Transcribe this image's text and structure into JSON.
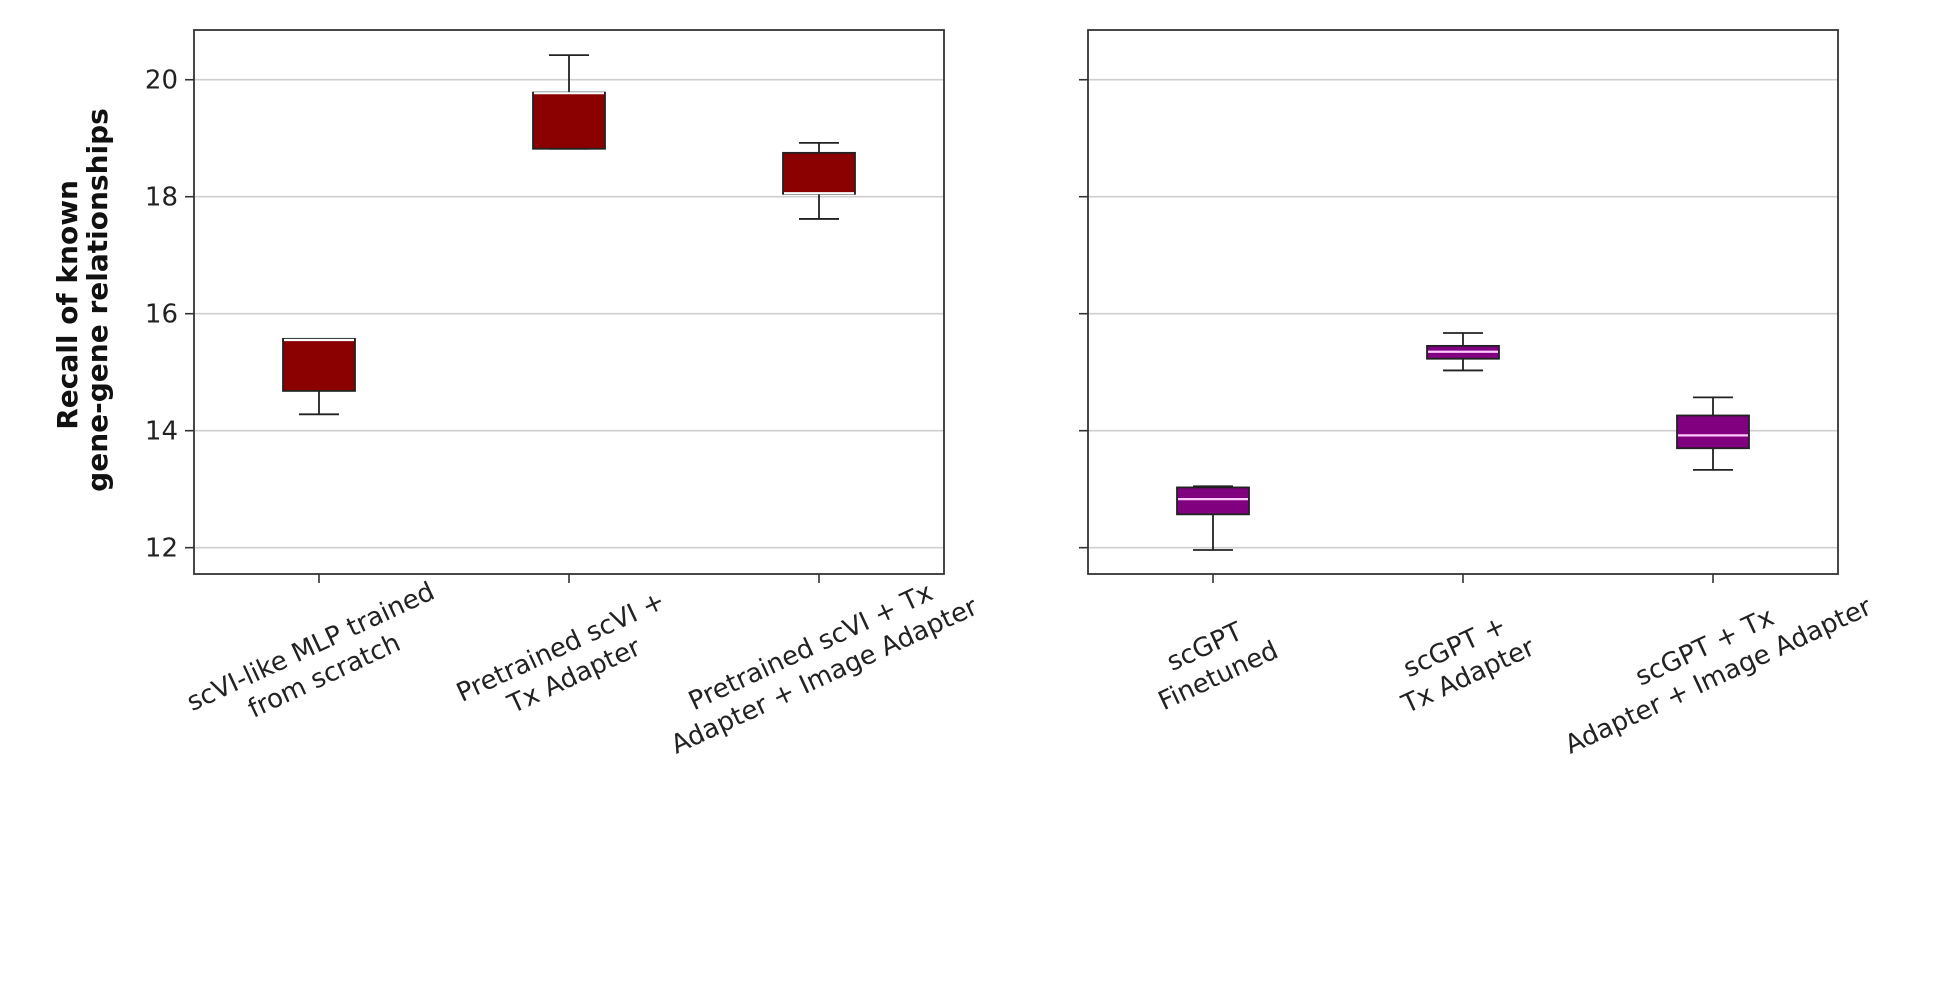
{
  "chart_data": [
    {
      "type": "box",
      "panel": "left",
      "ylabel": [
        "Recall of known",
        "gene-gene relationships"
      ],
      "ylim": [
        11.55,
        20.85
      ],
      "yticks": [
        12,
        14,
        16,
        18,
        20
      ],
      "grid": "horizontal",
      "color": "#8b0000",
      "median_color": "#ffffff",
      "categories": [
        "scVI-like MLP trained\nfrom scratch",
        "Pretrained scVI +\nTx Adapter",
        "Pretrained scVI + Tx\nAdapter + Image Adapter"
      ],
      "boxes": [
        {
          "whislo": 14.28,
          "q1": 14.68,
          "med": 15.55,
          "q3": 15.57,
          "whishi": 15.57
        },
        {
          "whislo": 18.82,
          "q1": 18.82,
          "med": 19.77,
          "q3": 19.78,
          "whishi": 20.42
        },
        {
          "whislo": 17.62,
          "q1": 18.05,
          "med": 18.06,
          "q3": 18.75,
          "whishi": 18.92
        }
      ]
    },
    {
      "type": "box",
      "panel": "right",
      "ylim": [
        11.55,
        20.85
      ],
      "yticks": [
        12,
        14,
        16,
        18,
        20
      ],
      "grid": "horizontal",
      "color": "#800080",
      "median_color": "#ffc8ff",
      "categories": [
        "scGPT\nFinetuned",
        "scGPT +\nTx Adapter",
        "scGPT + Tx\nAdapter + Image Adapter"
      ],
      "boxes": [
        {
          "whislo": 11.96,
          "q1": 12.57,
          "med": 12.83,
          "q3": 13.03,
          "whishi": 13.05
        },
        {
          "whislo": 15.03,
          "q1": 15.23,
          "med": 15.35,
          "q3": 15.45,
          "whishi": 15.67
        },
        {
          "whislo": 13.33,
          "q1": 13.7,
          "med": 13.92,
          "q3": 14.26,
          "whishi": 14.57
        }
      ]
    }
  ]
}
